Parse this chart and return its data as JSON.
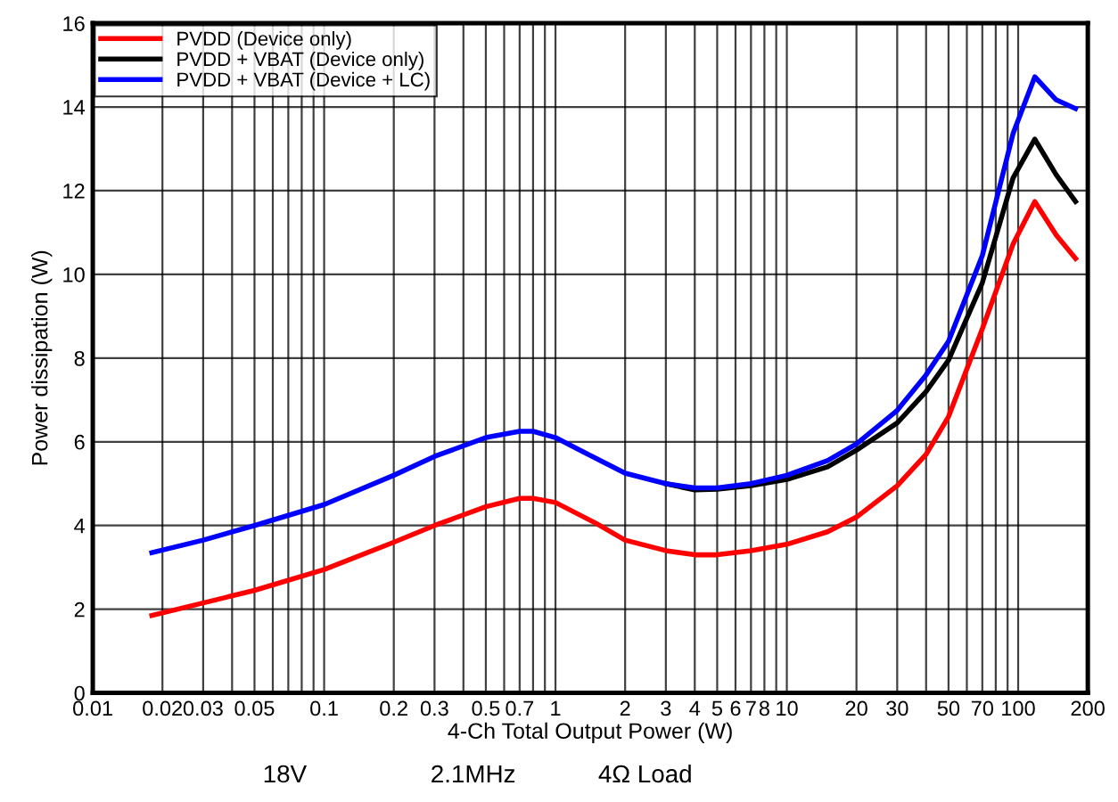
{
  "chart_data": {
    "type": "line",
    "xlabel": "4-Ch Total Output Power (W)",
    "ylabel": "Power dissipation (W)",
    "annotations": [
      "18V",
      "2.1MHz",
      "4Ω Load"
    ],
    "log": "x",
    "grid": true,
    "legend": "top left",
    "marker": "none",
    "line_style": "solid",
    "xlim": [
      0.01,
      200
    ],
    "ylim": [
      0,
      16
    ],
    "xticks": [
      0.01,
      0.02,
      0.03,
      {
        "value": 0.04,
        "label": null
      },
      0.05,
      {
        "value": 0.06,
        "label": null
      },
      {
        "value": 0.07,
        "label": null
      },
      {
        "value": 0.08,
        "label": null
      },
      {
        "value": 0.09,
        "label": null
      },
      0.1,
      0.2,
      0.3,
      {
        "value": 0.4,
        "label": null
      },
      0.5,
      {
        "value": 0.6,
        "label": null
      },
      0.7,
      {
        "value": 0.8,
        "label": null
      },
      {
        "value": 0.9,
        "label": null
      },
      1,
      2,
      3,
      4,
      5,
      6,
      7,
      8,
      {
        "value": 9,
        "label": null
      },
      10,
      20,
      30,
      {
        "value": 40,
        "label": null
      },
      50,
      {
        "value": 60,
        "label": null
      },
      70,
      {
        "value": 80,
        "label": null
      },
      {
        "value": 90,
        "label": null
      },
      100,
      200
    ],
    "yticks": [
      0,
      2,
      4,
      6,
      8,
      10,
      12,
      14,
      16
    ],
    "x": [
      0.018,
      0.03,
      0.05,
      0.1,
      0.2,
      0.3,
      0.5,
      0.7,
      0.8,
      1,
      1.5,
      2,
      3,
      4,
      5,
      7,
      10,
      15,
      20,
      30,
      40,
      50,
      70,
      95,
      118,
      146,
      177
    ],
    "series": [
      {
        "name": "PVDD (Device only)",
        "color": "#ff0000",
        "values": [
          1.85,
          2.15,
          2.45,
          2.95,
          3.6,
          4.0,
          4.45,
          4.65,
          4.65,
          4.55,
          4.05,
          3.65,
          3.4,
          3.3,
          3.3,
          3.4,
          3.55,
          3.85,
          4.2,
          4.95,
          5.7,
          6.6,
          8.7,
          10.72,
          11.74,
          10.94,
          10.38
        ]
      },
      {
        "name": "PVDD + VBAT (Device only)",
        "color": "#000000",
        "values": [
          null,
          null,
          null,
          null,
          null,
          null,
          null,
          null,
          null,
          null,
          null,
          null,
          5.0,
          4.85,
          4.87,
          4.95,
          5.1,
          5.4,
          5.8,
          6.45,
          7.2,
          7.95,
          9.8,
          12.3,
          13.23,
          12.38,
          11.74
        ]
      },
      {
        "name": "PVDD + VBAT (Device + LC)",
        "color": "#0000ff",
        "values": [
          3.35,
          3.65,
          4.0,
          4.5,
          5.2,
          5.65,
          6.1,
          6.25,
          6.25,
          6.1,
          5.6,
          5.25,
          5.0,
          4.9,
          4.9,
          5.0,
          5.2,
          5.55,
          5.95,
          6.75,
          7.6,
          8.4,
          10.45,
          13.36,
          14.72,
          14.17,
          13.96
        ]
      }
    ]
  }
}
